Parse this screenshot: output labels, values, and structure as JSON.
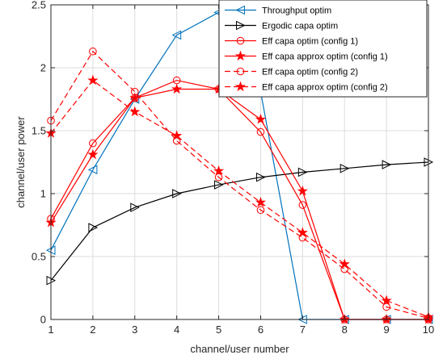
{
  "chart_data": {
    "type": "line",
    "xlabel": "channel/user number",
    "ylabel": "channel/user power",
    "xlim": [
      1,
      10
    ],
    "ylim": [
      0,
      2.5
    ],
    "xticks": [
      1,
      2,
      3,
      4,
      5,
      6,
      7,
      8,
      9,
      10
    ],
    "yticks": [
      0,
      0.5,
      1,
      1.5,
      2,
      2.5
    ],
    "ytick_labels": [
      "0",
      "0.5",
      "1",
      "1.5",
      "2",
      "2.5"
    ],
    "grid": true,
    "legend_position": "top-right",
    "x": [
      1,
      2,
      3,
      4,
      5,
      6,
      7,
      8,
      9,
      10
    ],
    "series": [
      {
        "name": "Throughput optim",
        "color": "#0072BD",
        "line": "solid",
        "marker": "triangle-left",
        "values": [
          0.55,
          1.19,
          1.75,
          2.26,
          2.44,
          1.81,
          0,
          0,
          0,
          0
        ]
      },
      {
        "name": "Ergodic capa optim",
        "color": "#000000",
        "line": "solid",
        "marker": "triangle-right",
        "values": [
          0.31,
          0.73,
          0.89,
          1.0,
          1.07,
          1.13,
          1.17,
          1.2,
          1.23,
          1.25
        ]
      },
      {
        "name": "Eff capa optim (config 1)",
        "color": "#FF0000",
        "line": "solid",
        "marker": "circle",
        "values": [
          0.8,
          1.4,
          1.76,
          1.9,
          1.83,
          1.49,
          0.91,
          0,
          0,
          0
        ]
      },
      {
        "name": "Eff capa approx optim (config 1)",
        "color": "#FF0000",
        "line": "solid",
        "marker": "star",
        "values": [
          0.77,
          1.31,
          1.76,
          1.83,
          1.83,
          1.59,
          1.02,
          0,
          0,
          0
        ]
      },
      {
        "name": "Eff capa optim (config 2)",
        "color": "#FF0000",
        "line": "dashed",
        "marker": "circle",
        "values": [
          1.58,
          2.13,
          1.81,
          1.42,
          1.13,
          0.87,
          0.65,
          0.4,
          0.1,
          0.01
        ]
      },
      {
        "name": "Eff capa approx optim (config 2)",
        "color": "#FF0000",
        "line": "dashed",
        "marker": "star",
        "values": [
          1.48,
          1.9,
          1.65,
          1.46,
          1.18,
          0.93,
          0.69,
          0.44,
          0.15,
          0.02
        ]
      }
    ]
  }
}
